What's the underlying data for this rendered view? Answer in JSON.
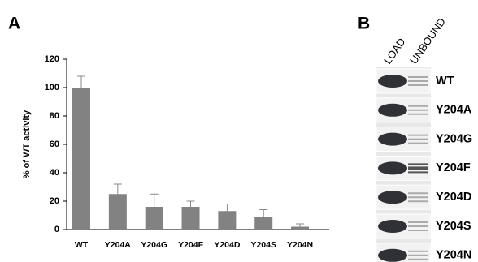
{
  "panel_labels": [
    "A",
    "B"
  ],
  "chart_data": {
    "type": "bar",
    "y_label": "% of WT activity",
    "categories": [
      "WT",
      "Y204A",
      "Y204G",
      "Y204F",
      "Y204D",
      "Y204S",
      "Y204N"
    ],
    "values": [
      100,
      25,
      16,
      16,
      13,
      9,
      2
    ],
    "errors": [
      8,
      7,
      9,
      4,
      5,
      5,
      2
    ],
    "color": "#828282",
    "ylim": [
      0,
      120
    ],
    "yticks": [
      0,
      20,
      40,
      60,
      80,
      100,
      120
    ],
    "grid": false
  },
  "gel": {
    "columns": [
      "LOAD",
      "UNBOUND"
    ],
    "rows": [
      "WT",
      "Y204A",
      "Y204G",
      "Y204F",
      "Y204D",
      "Y204S",
      "Y204N"
    ]
  }
}
